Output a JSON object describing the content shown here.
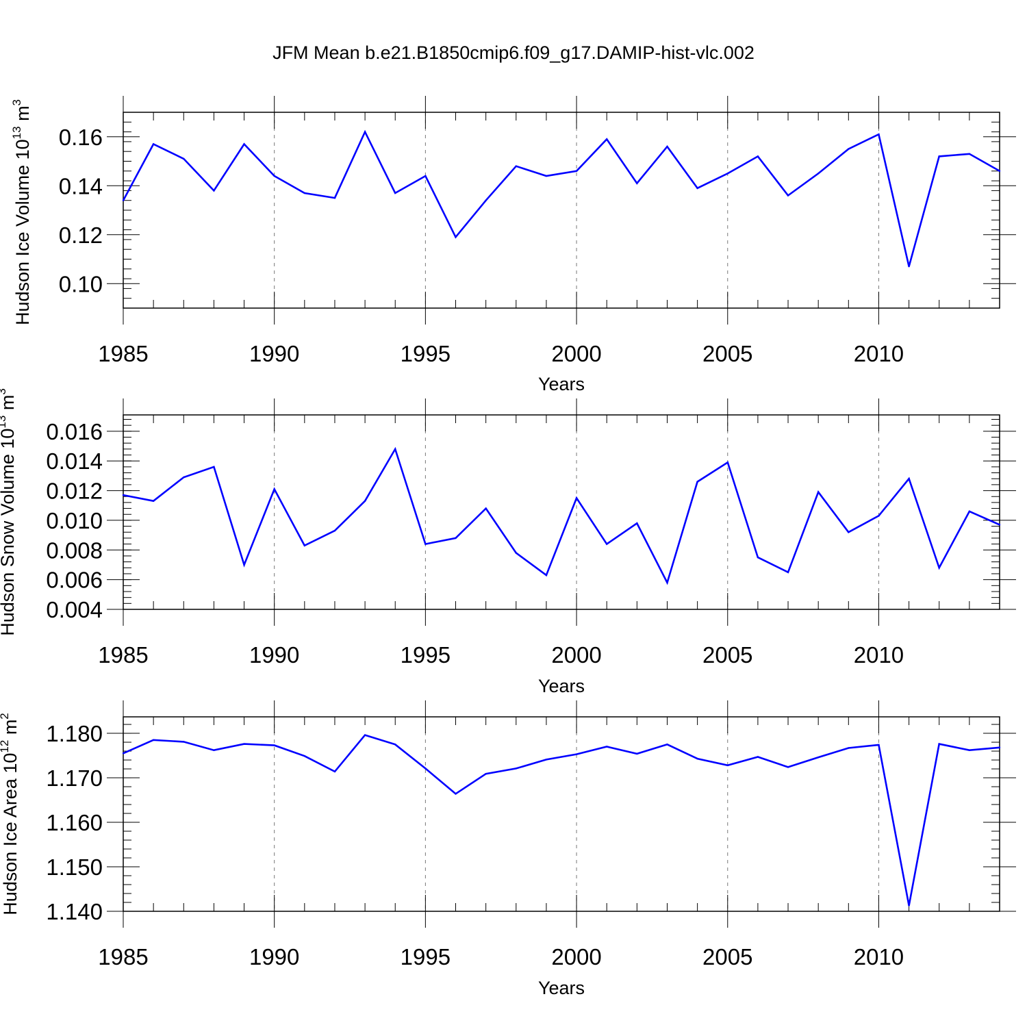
{
  "title": "JFM Mean b.e21.B1850cmip6.f09_g17.DAMIP-hist-vlc.002",
  "line_color": "#0000ff",
  "chart_data": [
    {
      "type": "line",
      "title": "JFM Mean b.e21.B1850cmip6.f09_g17.DAMIP-hist-vlc.002",
      "xlabel": "Years",
      "ylabel_text": "Hudson Ice Volume 10",
      "ylabel_exp": "13",
      "ylabel_unit": " m",
      "ylabel_unit_exp": "3",
      "xlim": [
        1985,
        2014
      ],
      "ylim": [
        0.09,
        0.17
      ],
      "x_ticks": [
        1985,
        1990,
        1995,
        2000,
        2005,
        2010
      ],
      "x_tick_labels": [
        "1985",
        "1990",
        "1995",
        "2000",
        "2005",
        "2010"
      ],
      "y_ticks": [
        0.1,
        0.12,
        0.14,
        0.16
      ],
      "y_tick_labels": [
        "0.10",
        "0.12",
        "0.14",
        "0.16"
      ],
      "y_minor_step": 0.004,
      "x": [
        1985,
        1986,
        1987,
        1988,
        1989,
        1990,
        1991,
        1992,
        1993,
        1994,
        1995,
        1996,
        1997,
        1998,
        1999,
        2000,
        2001,
        2002,
        2003,
        2004,
        2005,
        2006,
        2007,
        2008,
        2009,
        2010,
        2011,
        2012,
        2013,
        2014
      ],
      "values": [
        0.134,
        0.157,
        0.151,
        0.138,
        0.157,
        0.144,
        0.137,
        0.135,
        0.162,
        0.137,
        0.144,
        0.119,
        0.134,
        0.148,
        0.144,
        0.146,
        0.159,
        0.141,
        0.156,
        0.139,
        0.145,
        0.152,
        0.136,
        0.145,
        0.155,
        0.161,
        0.107,
        0.152,
        0.153,
        0.146
      ]
    },
    {
      "type": "line",
      "xlabel": "Years",
      "ylabel_text": "Hudson Snow Volume 10",
      "ylabel_exp": "13",
      "ylabel_unit": " m",
      "ylabel_unit_exp": "3",
      "xlim": [
        1985,
        2014
      ],
      "ylim": [
        0.004,
        0.0171
      ],
      "x_ticks": [
        1985,
        1990,
        1995,
        2000,
        2005,
        2010
      ],
      "x_tick_labels": [
        "1985",
        "1990",
        "1995",
        "2000",
        "2005",
        "2010"
      ],
      "y_ticks": [
        0.004,
        0.006,
        0.008,
        0.01,
        0.012,
        0.014,
        0.016
      ],
      "y_tick_labels": [
        "0.004",
        "0.006",
        "0.008",
        "0.010",
        "0.012",
        "0.014",
        "0.016"
      ],
      "y_minor_step": 0.0004,
      "x": [
        1985,
        1986,
        1987,
        1988,
        1989,
        1990,
        1991,
        1992,
        1993,
        1994,
        1995,
        1996,
        1997,
        1998,
        1999,
        2000,
        2001,
        2002,
        2003,
        2004,
        2005,
        2006,
        2007,
        2008,
        2009,
        2010,
        2011,
        2012,
        2013,
        2014
      ],
      "values": [
        0.0117,
        0.0113,
        0.0129,
        0.0136,
        0.007,
        0.0121,
        0.0083,
        0.0093,
        0.0113,
        0.0148,
        0.0084,
        0.0088,
        0.0108,
        0.0078,
        0.0063,
        0.0115,
        0.0084,
        0.0098,
        0.0058,
        0.0126,
        0.0139,
        0.0075,
        0.0065,
        0.0119,
        0.0092,
        0.0103,
        0.0128,
        0.0068,
        0.0106,
        0.0097
      ]
    },
    {
      "type": "line",
      "xlabel": "Years",
      "ylabel_text": "Hudson Ice Area 10",
      "ylabel_exp": "12",
      "ylabel_unit": " m",
      "ylabel_unit_exp": "2",
      "xlim": [
        1985,
        2014
      ],
      "ylim": [
        1.14,
        1.1837
      ],
      "x_ticks": [
        1985,
        1990,
        1995,
        2000,
        2005,
        2010
      ],
      "x_tick_labels": [
        "1985",
        "1990",
        "1995",
        "2000",
        "2005",
        "2010"
      ],
      "y_ticks": [
        1.14,
        1.15,
        1.16,
        1.17,
        1.18
      ],
      "y_tick_labels": [
        "1.140",
        "1.150",
        "1.160",
        "1.170",
        "1.180"
      ],
      "y_minor_step": 0.002,
      "x": [
        1985,
        1986,
        1987,
        1988,
        1989,
        1990,
        1991,
        1992,
        1993,
        1994,
        1995,
        1996,
        1997,
        1998,
        1999,
        2000,
        2001,
        2002,
        2003,
        2004,
        2005,
        2006,
        2007,
        2008,
        2009,
        2010,
        2011,
        2012,
        2013,
        2014
      ],
      "values": [
        1.1755,
        1.1785,
        1.1781,
        1.1762,
        1.1776,
        1.1773,
        1.1749,
        1.1714,
        1.1796,
        1.1775,
        1.1721,
        1.1664,
        1.1709,
        1.1721,
        1.1741,
        1.1753,
        1.177,
        1.1754,
        1.1775,
        1.1743,
        1.1728,
        1.1747,
        1.1724,
        1.1746,
        1.1767,
        1.1774,
        1.1413,
        1.1776,
        1.1762,
        1.1768
      ]
    }
  ]
}
